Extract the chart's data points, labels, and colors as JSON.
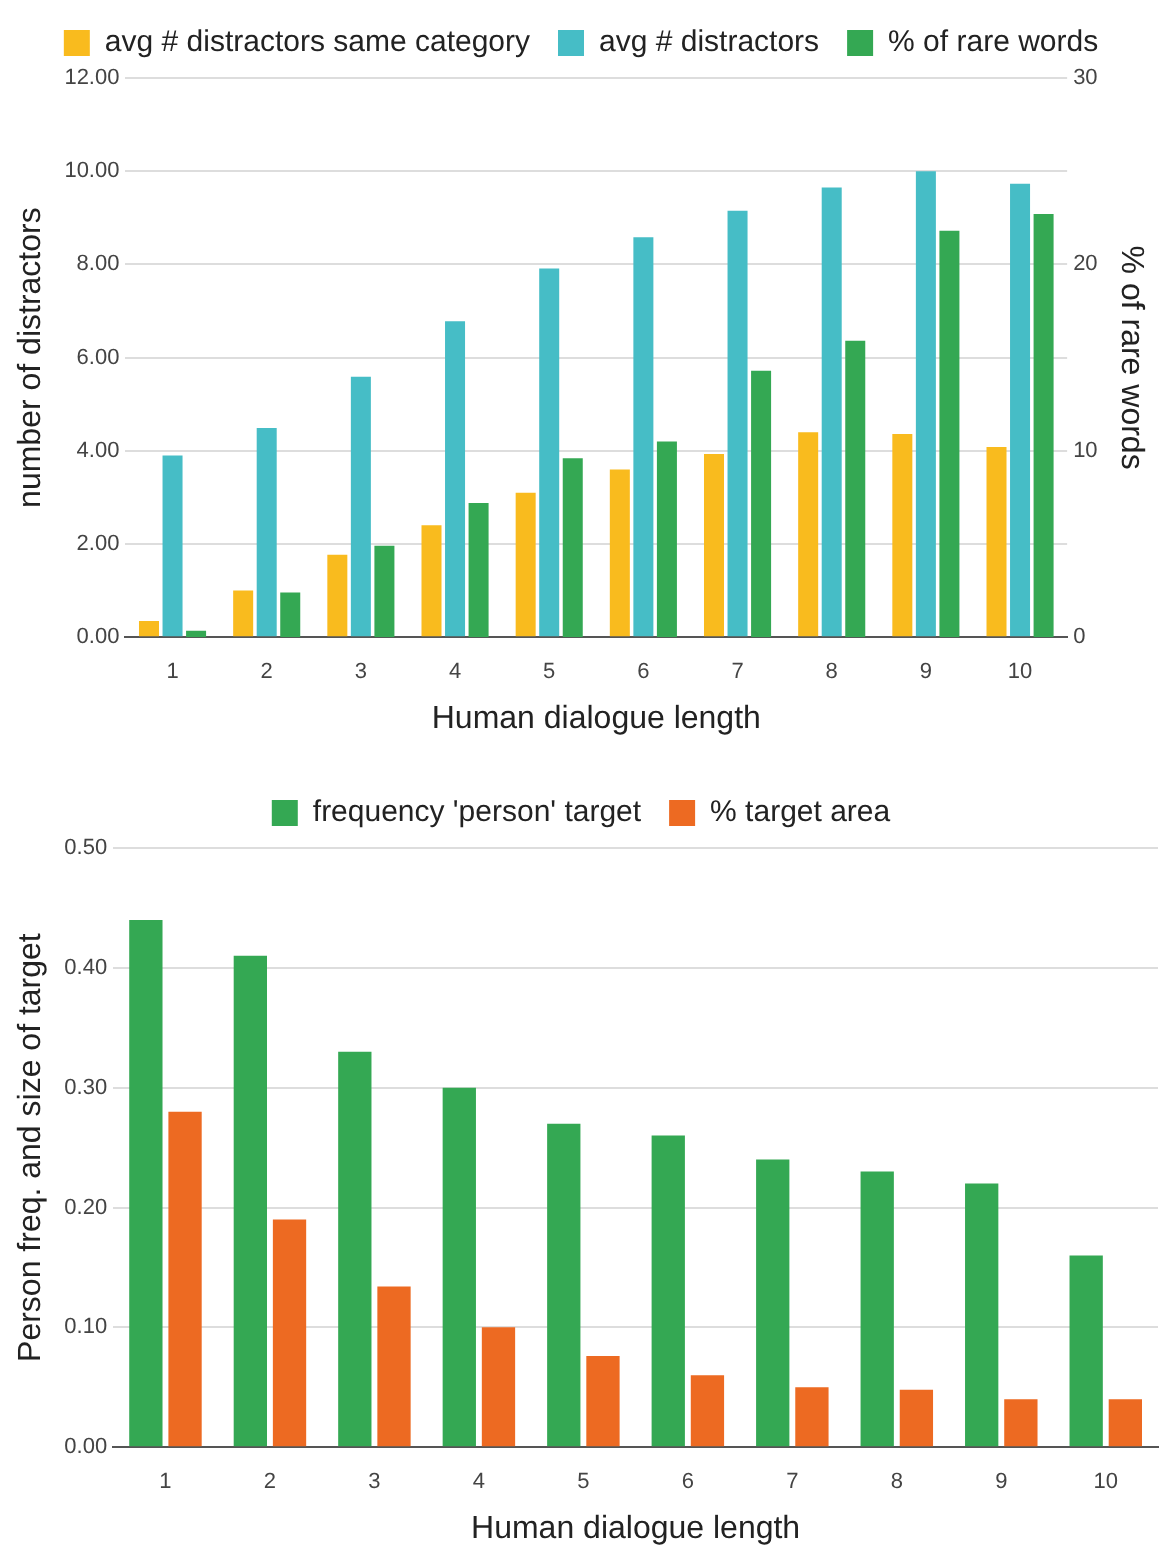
{
  "chart_data": [
    {
      "type": "bar",
      "categories": [
        "1",
        "2",
        "3",
        "4",
        "5",
        "6",
        "7",
        "8",
        "9",
        "10"
      ],
      "xlabel": "Human dialogue length",
      "ylabel": "number of distractors",
      "y2label": "% of rare words",
      "ylim": [
        0,
        12
      ],
      "yticks": [
        {
          "value": 0,
          "label": "0.00"
        },
        {
          "value": 2,
          "label": "2.00"
        },
        {
          "value": 4,
          "label": "4.00"
        },
        {
          "value": 6,
          "label": "6.00"
        },
        {
          "value": 8,
          "label": "8.00"
        },
        {
          "value": 10,
          "label": "10.00"
        },
        {
          "value": 12,
          "label": "12.00"
        }
      ],
      "y2lim": [
        0,
        30
      ],
      "y2ticks": [
        0,
        10,
        20,
        30
      ],
      "grid": "y",
      "legend": "top",
      "series": [
        {
          "name": "avg # distractors same category",
          "color": "#f9bb1e",
          "values": [
            0.35,
            1.0,
            1.77,
            2.4,
            3.1,
            3.6,
            3.93,
            4.4,
            4.36,
            4.08
          ]
        },
        {
          "name": "avg # distractors",
          "color": "#46bdc6",
          "values": [
            3.9,
            4.49,
            5.59,
            6.78,
            7.91,
            8.58,
            9.15,
            9.65,
            10.0,
            9.73
          ]
        },
        {
          "name": "% of rare words",
          "color": "#34a853",
          "axis": "y2",
          "values": [
            0.35,
            2.4,
            4.9,
            7.2,
            9.6,
            10.5,
            14.3,
            15.9,
            21.8,
            22.7
          ]
        }
      ]
    },
    {
      "type": "bar",
      "categories": [
        "1",
        "2",
        "3",
        "4",
        "5",
        "6",
        "7",
        "8",
        "9",
        "10"
      ],
      "xlabel": "Human dialogue length",
      "ylabel": "Person freq. and size of target",
      "ylim": [
        0,
        0.5
      ],
      "yticks": [
        {
          "value": 0,
          "label": "0.00"
        },
        {
          "value": 0.1,
          "label": "0.10"
        },
        {
          "value": 0.2,
          "label": "0.20"
        },
        {
          "value": 0.3,
          "label": "0.30"
        },
        {
          "value": 0.4,
          "label": "0.40"
        },
        {
          "value": 0.5,
          "label": "0.50"
        }
      ],
      "grid": "y",
      "legend": "top",
      "series": [
        {
          "name": "frequency 'person' target",
          "color": "#34a853",
          "values": [
            0.44,
            0.41,
            0.33,
            0.3,
            0.27,
            0.26,
            0.24,
            0.23,
            0.22,
            0.16
          ]
        },
        {
          "name": "% target area",
          "color": "#ed6a22",
          "values": [
            0.28,
            0.19,
            0.134,
            0.1,
            0.076,
            0.06,
            0.05,
            0.048,
            0.04,
            0.04
          ]
        }
      ]
    }
  ]
}
